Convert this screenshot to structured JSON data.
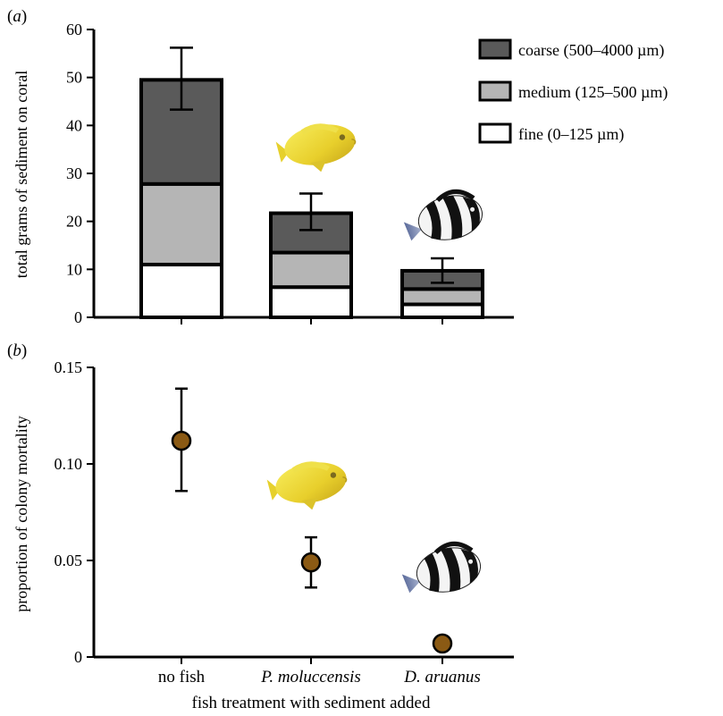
{
  "chart_data": [
    {
      "panel_label": "(a)",
      "type": "bar",
      "stacked": true,
      "ylabel": "total grams of sediment on coral",
      "ylim": [
        0,
        60
      ],
      "yticks": [
        0,
        10,
        20,
        30,
        40,
        50,
        60
      ],
      "categories": [
        "no fish",
        "P. moluccensis",
        "D. aruanus"
      ],
      "series": [
        {
          "name": "fine (0–125 µm)",
          "values": [
            11,
            6.3,
            2.7
          ],
          "color": "#ffffff"
        },
        {
          "name": "medium (125–500 µm)",
          "values": [
            16.8,
            7.2,
            3.2
          ],
          "color": "#b5b5b5"
        },
        {
          "name": "coarse (500–4000 µm)",
          "values": [
            21.7,
            8.2,
            3.8
          ],
          "color": "#5a5a5a"
        }
      ],
      "totals": [
        49.5,
        21.7,
        9.7
      ],
      "error_bars": [
        {
          "low": 43.3,
          "high": 56.2
        },
        {
          "low": 18.2,
          "high": 25.8
        },
        {
          "low": 7.2,
          "high": 12.3
        }
      ],
      "legend_position": "top-right",
      "fish_icons": [
        "yellow-damselfish-icon",
        "humbug-damselfish-icon"
      ]
    },
    {
      "panel_label": "(b)",
      "type": "scatter",
      "ylabel": "proportion of colony mortality",
      "xlabel": "fish treatment with sediment added",
      "ylim": [
        0,
        0.15
      ],
      "yticks": [
        0,
        0.05,
        0.1,
        0.15
      ],
      "ytick_labels": [
        "0",
        "0.05",
        "0.10",
        "0.15"
      ],
      "categories": [
        "no fish",
        "P. moluccensis",
        "D. aruanus"
      ],
      "values": [
        0.112,
        0.049,
        0.007
      ],
      "error_bars": [
        {
          "low": 0.086,
          "high": 0.139
        },
        {
          "low": 0.036,
          "high": 0.062
        },
        null
      ],
      "marker_color": "#8b5a14",
      "fish_icons": [
        "yellow-damselfish-icon",
        "humbug-damselfish-icon"
      ]
    }
  ]
}
